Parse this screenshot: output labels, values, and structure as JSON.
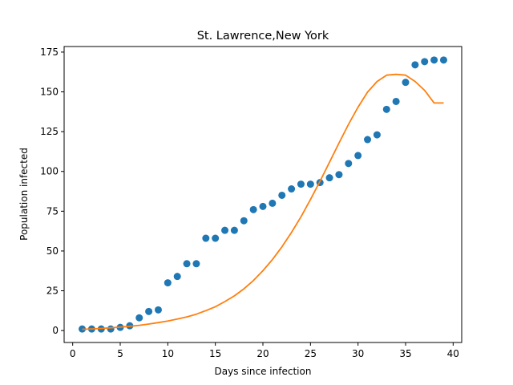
{
  "chart_data": {
    "type": "scatter",
    "title": "St. Lawrence,New York",
    "xlabel": "Days since infection",
    "ylabel": "Population infected",
    "xlim": [
      -0.9,
      40.9
    ],
    "ylim": [
      -7.5,
      178.5
    ],
    "xticks": [
      0,
      5,
      10,
      15,
      20,
      25,
      30,
      35,
      40
    ],
    "yticks": [
      0,
      25,
      50,
      75,
      100,
      125,
      150,
      175
    ],
    "grid": false,
    "legend": "none",
    "series": [
      {
        "type": "scatter",
        "color": "#1f77b4",
        "x": [
          1,
          2,
          3,
          4,
          5,
          6,
          7,
          8,
          9,
          10,
          11,
          12,
          13,
          14,
          15,
          16,
          17,
          18,
          19,
          20,
          21,
          22,
          23,
          24,
          25,
          26,
          27,
          28,
          29,
          30,
          31,
          32,
          33,
          34,
          35,
          36,
          37,
          38,
          39
        ],
        "values": [
          1,
          1,
          1,
          1,
          2,
          3,
          8,
          12,
          13,
          30,
          34,
          42,
          42,
          58,
          58,
          63,
          63,
          69,
          76,
          78,
          80,
          85,
          89,
          92,
          92,
          93,
          96,
          98,
          105,
          110,
          120,
          123,
          139,
          144,
          156,
          167,
          169,
          170,
          170
        ]
      },
      {
        "type": "line",
        "color": "#ff7f0e",
        "x": [
          1,
          2,
          3,
          4,
          5,
          6,
          7,
          8,
          9,
          10,
          11,
          12,
          13,
          14,
          15,
          16,
          17,
          18,
          19,
          20,
          21,
          22,
          23,
          24,
          25,
          26,
          27,
          28,
          29,
          30,
          31,
          32,
          33,
          34,
          35,
          36,
          37,
          38,
          39
        ],
        "values": [
          0.8,
          1.0,
          1.3,
          1.7,
          2.2,
          2.7,
          3.3,
          4.1,
          5.0,
          6.0,
          7.2,
          8.6,
          10.3,
          12.5,
          15.0,
          18.2,
          21.8,
          26.2,
          31.4,
          37.6,
          44.6,
          52.6,
          61.6,
          71.5,
          82.3,
          93.8,
          105.8,
          117.8,
          129.6,
          140.4,
          149.8,
          156.5,
          160.5,
          161.0,
          160.5,
          156.5,
          151.0,
          143.0,
          143.0
        ]
      }
    ]
  }
}
